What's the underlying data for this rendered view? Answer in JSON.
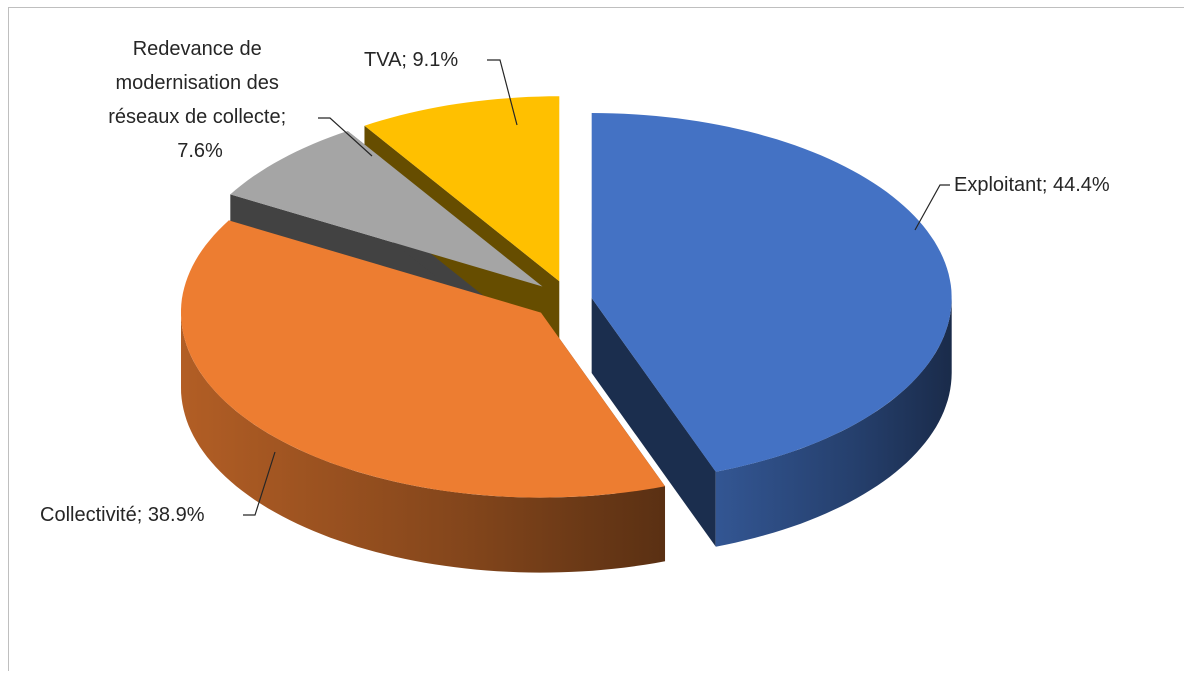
{
  "chart_data": {
    "type": "pie",
    "style": "3d-exploded",
    "title": "",
    "slices": [
      {
        "label": "Exploitant",
        "value": 44.4,
        "display": "Exploitant; 44.4%",
        "color": "#4472c4"
      },
      {
        "label": "Collectivité",
        "value": 38.9,
        "display": "Collectivité; 38.9%",
        "color": "#ed7d31"
      },
      {
        "label": "Redevance de modernisation des réseaux de collecte",
        "value": 7.6,
        "display_lines": [
          "Redevance de",
          "modernisation des",
          "réseaux de collecte;",
          "7.6%"
        ],
        "color": "#a5a5a5"
      },
      {
        "label": "TVA",
        "value": 9.1,
        "display": "TVA; 9.1%",
        "color": "#ffc000"
      }
    ]
  }
}
